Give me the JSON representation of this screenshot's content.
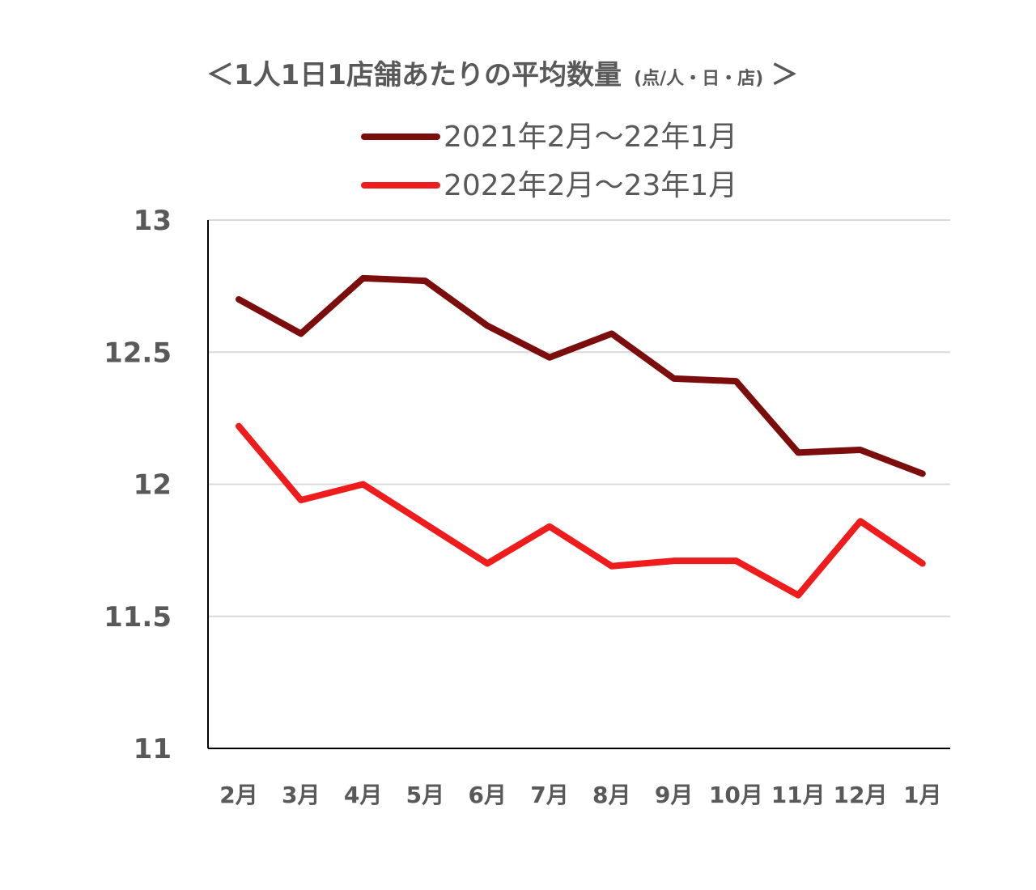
{
  "chart_data": {
    "type": "line",
    "title": "＜1人1日1店舗あたりの平均数量",
    "title_unit": "(点/人・日・店)",
    "title_close": "＞",
    "categories": [
      "2月",
      "3月",
      "4月",
      "5月",
      "6月",
      "7月",
      "8月",
      "9月",
      "10月",
      "11月",
      "12月",
      "1月"
    ],
    "series": [
      {
        "name": "2021年2月～22年1月",
        "color": "#7b0d0d",
        "values": [
          12.7,
          12.57,
          12.78,
          12.77,
          12.6,
          12.48,
          12.57,
          12.4,
          12.39,
          12.12,
          12.13,
          12.04
        ]
      },
      {
        "name": "2022年2月～23年1月",
        "color": "#ee1c1c",
        "values": [
          12.22,
          11.94,
          12.0,
          11.85,
          11.7,
          11.84,
          11.69,
          11.71,
          11.71,
          11.58,
          11.86,
          11.7
        ]
      }
    ],
    "ylim": [
      11,
      13
    ],
    "yticks": [
      "11",
      "11.5",
      "12",
      "12.5",
      "13"
    ],
    "ytick_values": [
      11,
      11.5,
      12,
      12.5,
      13
    ],
    "grid": true,
    "legend_position": "top"
  }
}
